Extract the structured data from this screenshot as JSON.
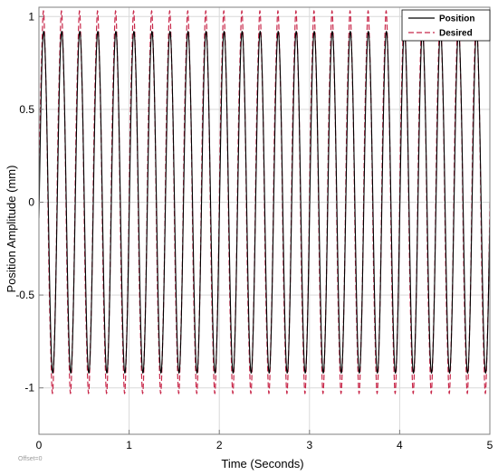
{
  "chart_data": {
    "type": "line",
    "xlabel": "Time (Seconds)",
    "ylabel": "Position Amplitude (mm)",
    "xlim": [
      0,
      5
    ],
    "ylim": [
      -1.25,
      1.05
    ],
    "x_ticks": [
      0,
      1,
      2,
      3,
      4,
      5
    ],
    "x_tick_labels": [
      "0",
      "1",
      "2",
      "3",
      "4",
      "5"
    ],
    "y_ticks": [
      1,
      0.5,
      0,
      -0.5,
      -1
    ],
    "y_tick_labels": [
      "1",
      "0.5",
      "0",
      "-0.5",
      "-1"
    ],
    "grid": true,
    "legend_position": "top-right",
    "offset_label": "Offset=0",
    "series": [
      {
        "name": "Position",
        "color": "#000000",
        "style": "solid",
        "amplitude": 0.92,
        "frequency_hz": 5,
        "phase_delay_s": 0.003
      },
      {
        "name": "Desired",
        "color": "#c8284a",
        "style": "dashed",
        "amplitude": 1.0,
        "frequency_hz": 5,
        "phase_delay_s": 0,
        "ripple_amplitude": 0.03
      }
    ]
  }
}
